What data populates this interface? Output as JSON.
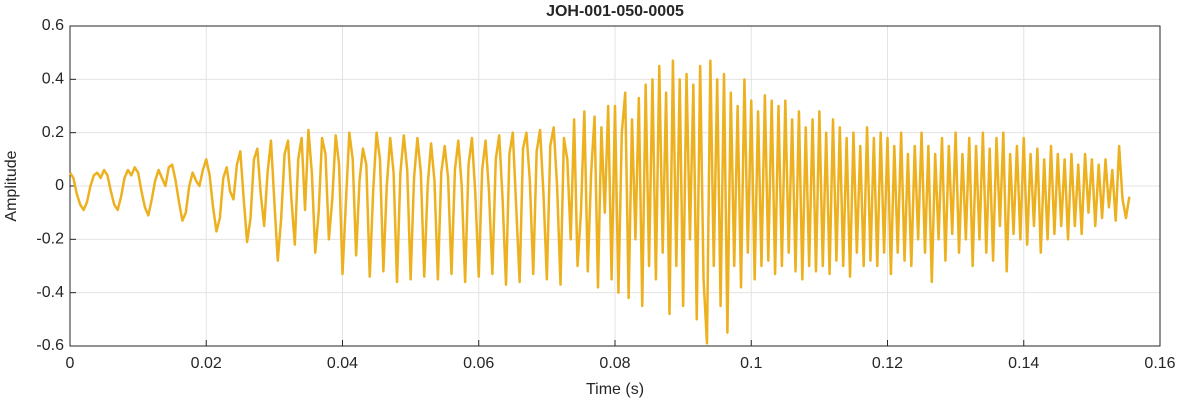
{
  "chart_data": {
    "type": "line",
    "title": "JOH-001-050-0005",
    "xlabel": "Time (s)",
    "ylabel": "Amplitude",
    "xlim": [
      0,
      0.16
    ],
    "xticks": [
      0,
      0.02,
      0.04,
      0.06,
      0.08,
      0.1,
      0.12,
      0.14,
      0.16
    ],
    "ylim": [
      -0.6,
      0.6
    ],
    "yticks": [
      -0.6,
      -0.4,
      -0.2,
      0,
      0.2,
      0.4,
      0.6
    ],
    "grid": true,
    "x": [
      0,
      0.0005,
      0.001,
      0.0015,
      0.002,
      0.0025,
      0.003,
      0.0035,
      0.004,
      0.0045,
      0.005,
      0.0055,
      0.006,
      0.0065,
      0.007,
      0.0075,
      0.008,
      0.0085,
      0.009,
      0.0095,
      0.01,
      0.0105,
      0.011,
      0.0115,
      0.012,
      0.0125,
      0.013,
      0.0135,
      0.014,
      0.0145,
      0.015,
      0.0155,
      0.016,
      0.0165,
      0.017,
      0.0175,
      0.018,
      0.0185,
      0.019,
      0.0195,
      0.02,
      0.0205,
      0.021,
      0.0215,
      0.022,
      0.0225,
      0.023,
      0.0235,
      0.024,
      0.0245,
      0.025,
      0.0255,
      0.026,
      0.0265,
      0.027,
      0.0275,
      0.028,
      0.0285,
      0.029,
      0.0295,
      0.03,
      0.0305,
      0.031,
      0.0315,
      0.032,
      0.0325,
      0.033,
      0.0335,
      0.034,
      0.0345,
      0.035,
      0.0355,
      0.036,
      0.0365,
      0.037,
      0.0375,
      0.038,
      0.0385,
      0.039,
      0.0395,
      0.04,
      0.0405,
      0.041,
      0.0415,
      0.042,
      0.0425,
      0.043,
      0.0435,
      0.044,
      0.0445,
      0.045,
      0.0455,
      0.046,
      0.0465,
      0.047,
      0.0475,
      0.048,
      0.0485,
      0.049,
      0.0495,
      0.05,
      0.0505,
      0.051,
      0.0515,
      0.052,
      0.0525,
      0.053,
      0.0535,
      0.054,
      0.0545,
      0.055,
      0.0555,
      0.056,
      0.0565,
      0.057,
      0.0575,
      0.058,
      0.0585,
      0.059,
      0.0595,
      0.06,
      0.0605,
      0.061,
      0.0615,
      0.062,
      0.0625,
      0.063,
      0.0635,
      0.064,
      0.0645,
      0.065,
      0.0655,
      0.066,
      0.0665,
      0.067,
      0.0675,
      0.068,
      0.0685,
      0.069,
      0.0695,
      0.07,
      0.0705,
      0.071,
      0.0715,
      0.072,
      0.0725,
      0.073,
      0.0735,
      0.074,
      0.0745,
      0.075,
      0.0755,
      0.076,
      0.0765,
      0.077,
      0.0775,
      0.078,
      0.0785,
      0.079,
      0.0795,
      0.08,
      0.0805,
      0.081,
      0.0815,
      0.082,
      0.0825,
      0.083,
      0.0835,
      0.084,
      0.0845,
      0.085,
      0.0855,
      0.086,
      0.0865,
      0.087,
      0.0875,
      0.088,
      0.0885,
      0.089,
      0.0895,
      0.09,
      0.0905,
      0.091,
      0.0915,
      0.092,
      0.0925,
      0.093,
      0.0935,
      0.094,
      0.0945,
      0.095,
      0.0955,
      0.096,
      0.0965,
      0.097,
      0.0975,
      0.098,
      0.0985,
      0.099,
      0.0995,
      0.1,
      0.1005,
      0.101,
      0.1015,
      0.102,
      0.1025,
      0.103,
      0.1035,
      0.104,
      0.1045,
      0.105,
      0.1055,
      0.106,
      0.1065,
      0.107,
      0.1075,
      0.108,
      0.1085,
      0.109,
      0.1095,
      0.11,
      0.1105,
      0.111,
      0.1115,
      0.112,
      0.1125,
      0.113,
      0.1135,
      0.114,
      0.1145,
      0.115,
      0.1155,
      0.116,
      0.1165,
      0.117,
      0.1175,
      0.118,
      0.1185,
      0.119,
      0.1195,
      0.12,
      0.1205,
      0.121,
      0.1215,
      0.122,
      0.1225,
      0.123,
      0.1235,
      0.124,
      0.1245,
      0.125,
      0.1255,
      0.126,
      0.1265,
      0.127,
      0.1275,
      0.128,
      0.1285,
      0.129,
      0.1295,
      0.13,
      0.1305,
      0.131,
      0.1315,
      0.132,
      0.1325,
      0.133,
      0.1335,
      0.134,
      0.1345,
      0.135,
      0.1355,
      0.136,
      0.1365,
      0.137,
      0.1375,
      0.138,
      0.1385,
      0.139,
      0.1395,
      0.14,
      0.1405,
      0.141,
      0.1415,
      0.142,
      0.1425,
      0.143,
      0.1435,
      0.144,
      0.1445,
      0.145,
      0.1455,
      0.146,
      0.1465,
      0.147,
      0.1475,
      0.148,
      0.1485,
      0.149,
      0.1495,
      0.15,
      0.1505,
      0.151,
      0.1515,
      0.152,
      0.1525,
      0.153,
      0.1535,
      0.154,
      0.1545,
      0.155,
      0.1555
    ],
    "series": [
      {
        "color": "#EDB120",
        "values": [
          0.05,
          0.03,
          -0.03,
          -0.07,
          -0.09,
          -0.06,
          0.0,
          0.04,
          0.05,
          0.03,
          0.06,
          0.04,
          -0.02,
          -0.07,
          -0.09,
          -0.04,
          0.03,
          0.06,
          0.04,
          0.07,
          0.05,
          -0.02,
          -0.08,
          -0.11,
          -0.05,
          0.02,
          0.06,
          0.03,
          0.0,
          0.07,
          0.08,
          0.02,
          -0.06,
          -0.13,
          -0.1,
          0.0,
          0.05,
          0.02,
          0.0,
          0.06,
          0.1,
          0.04,
          -0.08,
          -0.17,
          -0.12,
          0.03,
          0.07,
          -0.02,
          -0.05,
          0.08,
          0.13,
          -0.05,
          -0.21,
          -0.12,
          0.1,
          0.14,
          -0.03,
          -0.15,
          0.05,
          0.17,
          -0.06,
          -0.28,
          -0.12,
          0.12,
          0.17,
          -0.05,
          -0.22,
          0.1,
          0.18,
          -0.09,
          0.21,
          0.05,
          -0.25,
          -0.1,
          0.18,
          0.12,
          -0.2,
          -0.05,
          0.19,
          0.08,
          -0.33,
          -0.06,
          0.2,
          0.1,
          -0.26,
          0.02,
          0.14,
          0.08,
          -0.34,
          -0.02,
          0.2,
          0.1,
          -0.32,
          0.0,
          0.18,
          0.05,
          -0.36,
          0.05,
          0.19,
          0.06,
          -0.35,
          0.03,
          0.18,
          0.05,
          -0.34,
          0.0,
          0.16,
          0.02,
          -0.35,
          0.05,
          0.15,
          0.03,
          -0.33,
          0.06,
          0.17,
          0.0,
          -0.36,
          0.08,
          0.18,
          -0.03,
          -0.34,
          0.06,
          0.17,
          -0.02,
          -0.33,
          0.1,
          0.19,
          -0.05,
          -0.37,
          0.12,
          0.2,
          -0.08,
          -0.36,
          0.14,
          0.2,
          0.02,
          -0.33,
          0.13,
          0.21,
          -0.03,
          -0.35,
          0.15,
          0.22,
          0.0,
          -0.37,
          0.18,
          0.1,
          -0.2,
          0.25,
          -0.3,
          -0.1,
          0.28,
          -0.32,
          0.05,
          0.26,
          -0.38,
          0.22,
          -0.1,
          0.3,
          -0.35,
          0.3,
          -0.4,
          0.2,
          0.35,
          -0.42,
          0.25,
          -0.2,
          0.33,
          -0.45,
          0.38,
          -0.3,
          0.4,
          -0.35,
          0.45,
          -0.25,
          0.35,
          -0.48,
          0.47,
          -0.3,
          0.4,
          -0.45,
          0.42,
          -0.2,
          0.38,
          -0.5,
          0.45,
          -0.35,
          -0.59,
          0.47,
          -0.3,
          0.4,
          -0.45,
          0.42,
          -0.55,
          0.35,
          -0.3,
          0.3,
          -0.38,
          0.4,
          -0.25,
          0.32,
          -0.35,
          0.28,
          -0.3,
          0.34,
          -0.28,
          0.32,
          -0.33,
          0.3,
          -0.3,
          0.32,
          -0.25,
          0.25,
          -0.32,
          0.28,
          -0.35,
          0.22,
          -0.3,
          0.25,
          -0.32,
          0.28,
          -0.3,
          0.2,
          -0.33,
          0.25,
          -0.28,
          0.22,
          -0.3,
          0.18,
          -0.34,
          0.2,
          -0.25,
          0.15,
          -0.3,
          0.22,
          -0.28,
          0.18,
          -0.3,
          0.2,
          -0.25,
          0.18,
          -0.33,
          0.15,
          -0.25,
          0.2,
          -0.28,
          0.12,
          -0.3,
          0.15,
          -0.2,
          0.2,
          -0.25,
          0.15,
          -0.36,
          0.12,
          -0.2,
          0.18,
          -0.28,
          0.15,
          -0.18,
          0.2,
          -0.25,
          0.12,
          -0.2,
          0.18,
          -0.3,
          0.15,
          -0.2,
          0.2,
          -0.25,
          0.14,
          -0.28,
          0.18,
          -0.15,
          0.2,
          -0.32,
          0.12,
          -0.18,
          0.15,
          -0.2,
          0.18,
          -0.22,
          0.12,
          -0.15,
          0.14,
          -0.25,
          0.1,
          -0.2,
          0.15,
          -0.18,
          0.12,
          -0.15,
          0.1,
          -0.2,
          0.12,
          -0.15,
          0.08,
          -0.18,
          0.12,
          -0.1,
          0.1,
          -0.15,
          0.08,
          -0.12,
          0.1,
          -0.08,
          0.06,
          -0.13,
          0.15,
          -0.05,
          -0.12,
          -0.04
        ]
      }
    ]
  }
}
